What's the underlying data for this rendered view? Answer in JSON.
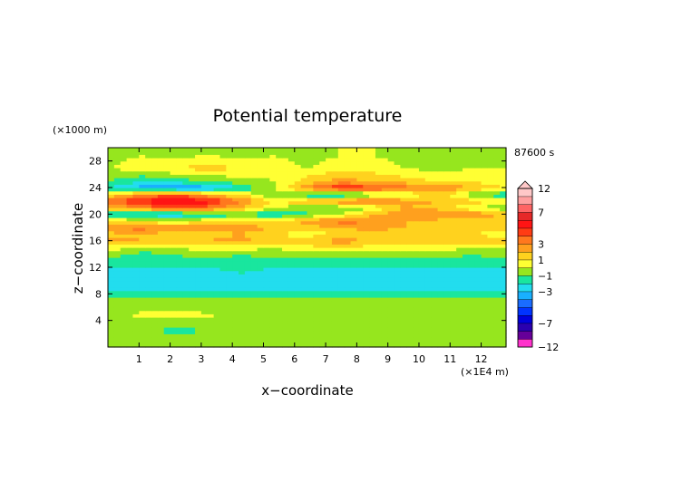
{
  "chart_data": {
    "type": "heatmap",
    "title": "Potential temperature",
    "time_label": "87600 s",
    "xlabel": "x−coordinate",
    "ylabel": "z−coordinate",
    "x_unit": "(×1E4 m)",
    "y_unit": "(×1000 m)",
    "xlim": [
      0,
      12.8
    ],
    "ylim": [
      0,
      30
    ],
    "x_ticks": [
      "1",
      "2",
      "3",
      "4",
      "5",
      "6",
      "7",
      "8",
      "9",
      "10",
      "11",
      "12"
    ],
    "y_ticks": [
      "4",
      "8",
      "12",
      "16",
      "20",
      "24",
      "28"
    ],
    "colorbar": {
      "levels": [
        -12,
        -9,
        -8,
        -7,
        -6,
        -5,
        -4,
        -3,
        -2,
        -1,
        0,
        1,
        2,
        3,
        4,
        5,
        6,
        7,
        8,
        9,
        12
      ],
      "tick_labels": [
        "12",
        "7",
        "3",
        "1",
        "−1",
        "−3",
        "−7",
        "−12"
      ],
      "colors": [
        "#ff33cc",
        "#660099",
        "#2a00b0",
        "#0000dd",
        "#0033ff",
        "#1a6cff",
        "#19b0ff",
        "#22ddee",
        "#19e69e",
        "#96e61e",
        "#ffff33",
        "#ffd21e",
        "#ffa01e",
        "#ff781e",
        "#ff3c14",
        "#ff1414",
        "#e62828",
        "#ff6464",
        "#ffa0a0",
        "#ffc8c8"
      ]
    },
    "z_rows": [
      {
        "z": 29,
        "values": [
          -0.5,
          0,
          -0.5,
          0,
          -0.5,
          0,
          -0.5,
          0,
          0,
          -0.5,
          0,
          -0.5,
          0
        ]
      },
      {
        "z": 27,
        "values": [
          0,
          0.5,
          1,
          1.5,
          1,
          0.5,
          0,
          0.5,
          0.5,
          0,
          -0.5,
          0,
          0
        ]
      },
      {
        "z": 25,
        "values": [
          -1,
          -2,
          -1.5,
          -1,
          -0.5,
          0,
          1.5,
          2.5,
          2,
          1.5,
          1,
          1,
          0
        ]
      },
      {
        "z": 24,
        "values": [
          -2,
          -3.5,
          -4,
          -3.5,
          -2,
          0,
          3,
          5,
          4.5,
          3.5,
          3,
          2,
          1
        ]
      },
      {
        "z": 23,
        "values": [
          1,
          3,
          4,
          2,
          1,
          -1,
          -2,
          -2.5,
          -1,
          0,
          1.5,
          -1,
          -2
        ]
      },
      {
        "z": 22,
        "values": [
          4,
          5,
          6.5,
          5.5,
          3,
          1,
          2,
          3,
          3.5,
          2.5,
          2,
          1.5,
          1
        ]
      },
      {
        "z": 21,
        "values": [
          2,
          3,
          4.5,
          3.5,
          2,
          0,
          -1,
          -1,
          0,
          2,
          1.5,
          0,
          -1
        ]
      },
      {
        "z": 20,
        "values": [
          -2,
          -2.5,
          -3,
          -2,
          -1.5,
          -2,
          -1,
          0,
          2,
          3,
          3.5,
          3,
          2
        ]
      },
      {
        "z": 19,
        "values": [
          1,
          0.5,
          0,
          1,
          1.5,
          1,
          2.5,
          3.5,
          3,
          2,
          1.5,
          1,
          1
        ]
      },
      {
        "z": 18,
        "values": [
          3,
          3.5,
          3,
          2.5,
          2.5,
          2,
          1.5,
          2,
          2.5,
          2,
          2,
          1.5,
          1.5
        ]
      },
      {
        "z": 17,
        "values": [
          1.5,
          2,
          1,
          1.5,
          2,
          1,
          0.5,
          1,
          1.5,
          1,
          1,
          1,
          0.5
        ]
      },
      {
        "z": 16,
        "values": [
          2.5,
          2,
          1.5,
          2,
          2.5,
          1.5,
          2,
          2.5,
          2,
          1.5,
          2,
          2,
          1.5
        ]
      },
      {
        "z": 15,
        "values": [
          0.5,
          0,
          0,
          0.5,
          0.5,
          0,
          0.5,
          1,
          0.5,
          0.5,
          0.5,
          0,
          0
        ]
      },
      {
        "z": 14,
        "values": [
          -0.5,
          -1.5,
          -1,
          -0.5,
          -1,
          -0.5,
          -0.5,
          -0.5,
          -0.5,
          -0.5,
          -0.5,
          -1,
          -0.5
        ]
      },
      {
        "z": 13,
        "values": [
          -1.5,
          -1.5,
          -1.5,
          -1.5,
          -1.5,
          -1.5,
          -1.5,
          -1.5,
          -1.5,
          -1.5,
          -1.5,
          -1.5,
          -1.5
        ]
      },
      {
        "z": 11,
        "values": [
          -2.5,
          -2.5,
          -2.5,
          -2.5,
          -2,
          -2.5,
          -2.5,
          -2.5,
          -2.5,
          -2.5,
          -2.5,
          -2.5,
          -2.5
        ]
      },
      {
        "z": 9,
        "values": [
          -2.5,
          -2.5,
          -3,
          -3,
          -2.5,
          -2.5,
          -2.5,
          -3,
          -2.5,
          -2.5,
          -2.5,
          -2.5,
          -2.5
        ]
      },
      {
        "z": 8,
        "values": [
          -1.5,
          -1.5,
          -1.5,
          -1.5,
          -1.5,
          -1.5,
          -1.5,
          -1.5,
          -1.5,
          -1.5,
          -1.5,
          -1.5,
          -1.5
        ]
      },
      {
        "z": 7,
        "values": [
          -0.5,
          -0.5,
          -0.5,
          -0.5,
          -0.5,
          -0.5,
          -0.5,
          -0.5,
          -0.5,
          -0.5,
          -0.5,
          -0.5,
          -0.5
        ]
      },
      {
        "z": 6,
        "values": [
          -0.8,
          -0.8,
          -0.8,
          -0.8,
          -0.8,
          -0.8,
          -0.8,
          -0.8,
          -0.8,
          -0.8,
          -0.8,
          -0.8,
          -0.8
        ]
      },
      {
        "z": 5,
        "values": [
          -0.3,
          0.3,
          0.5,
          0.2,
          -0.3,
          -0.5,
          -0.5,
          -0.5,
          -0.5,
          -0.5,
          -0.5,
          -0.5,
          -0.5
        ]
      },
      {
        "z": 3.5,
        "values": [
          -0.5,
          -0.5,
          -0.5,
          -0.5,
          -0.5,
          -0.5,
          -0.5,
          -0.5,
          -0.5,
          -0.5,
          -0.5,
          -0.5,
          -0.5
        ]
      },
      {
        "z": 2.5,
        "values": [
          -0.5,
          -0.5,
          -1.5,
          -1,
          -0.5,
          -0.5,
          -0.5,
          -0.5,
          -0.5,
          -0.5,
          -0.5,
          -0.5,
          -0.5
        ]
      },
      {
        "z": 1.5,
        "values": [
          -0.5,
          -0.5,
          -0.5,
          -0.5,
          -0.5,
          -0.5,
          -0.5,
          -0.5,
          -0.5,
          -0.5,
          -0.5,
          -0.5,
          -0.5
        ]
      },
      {
        "z": 0.5,
        "values": [
          -0.5,
          -0.5,
          -0.5,
          -0.5,
          -0.5,
          -0.5,
          -0.5,
          -0.5,
          -0.5,
          -0.5,
          -0.5,
          -0.5,
          -0.5
        ]
      }
    ]
  }
}
